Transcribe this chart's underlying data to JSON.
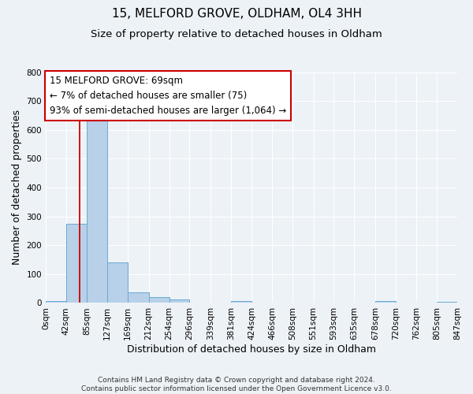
{
  "title": "15, MELFORD GROVE, OLDHAM, OL4 3HH",
  "subtitle": "Size of property relative to detached houses in Oldham",
  "xlabel": "Distribution of detached houses by size in Oldham",
  "ylabel": "Number of detached properties",
  "footer_lines": [
    "Contains HM Land Registry data © Crown copyright and database right 2024.",
    "Contains public sector information licensed under the Open Government Licence v3.0."
  ],
  "bin_edges": [
    0,
    42,
    85,
    127,
    169,
    212,
    254,
    296,
    339,
    381,
    424,
    466,
    508,
    551,
    593,
    635,
    678,
    720,
    762,
    805,
    847
  ],
  "bin_counts": [
    7,
    275,
    640,
    140,
    37,
    20,
    13,
    0,
    0,
    7,
    0,
    0,
    0,
    0,
    0,
    0,
    6,
    0,
    0,
    5
  ],
  "bar_color": "#b8d0e8",
  "bar_edge_color": "#6aaad4",
  "vline_color": "#cc0000",
  "vline_x": 69,
  "annotation_line1": "15 MELFORD GROVE: 69sqm",
  "annotation_line2": "← 7% of detached houses are smaller (75)",
  "annotation_line3": "93% of semi-detached houses are larger (1,064) →",
  "annotation_box_facecolor": "#ffffff",
  "annotation_box_edgecolor": "#cc0000",
  "ylim": [
    0,
    800
  ],
  "yticks": [
    0,
    100,
    200,
    300,
    400,
    500,
    600,
    700,
    800
  ],
  "bg_color": "#edf2f7",
  "grid_color": "#ffffff",
  "title_fontsize": 11,
  "subtitle_fontsize": 9.5,
  "axis_label_fontsize": 9,
  "tick_fontsize": 7.5,
  "annotation_fontsize": 8.5,
  "footer_fontsize": 6.5
}
